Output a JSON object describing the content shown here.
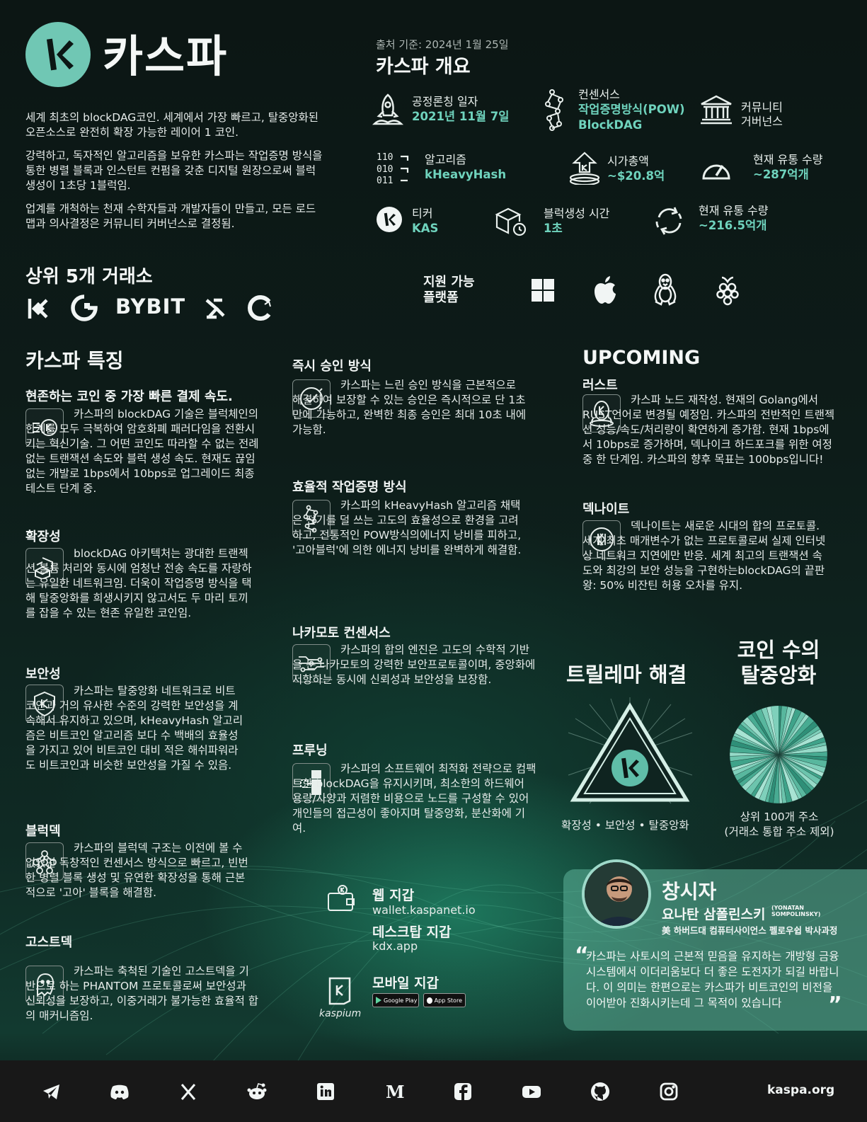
{
  "header": {
    "title": "카스파",
    "intro": [
      "세계 최초의 blockDAG코인. 세계에서 가장 빠르고, 탈중앙화된 오픈소스로 완전히 확장 가능한 레이어 1 코인.",
      "강력하고, 독자적인 알고리즘을 보유한 카스파는 작업증명 방식을 통한 병렬 블록과 인스턴트 컨펌을 갖춘 디지털 원장으로써 블럭생성이 1초당 1블럭임.",
      "업계를 개척하는 천재 수학자들과 개발자들이 만들고, 모든 로드맵과 의사결정은 커뮤니티 커버넌스로 결정됨."
    ]
  },
  "overview": {
    "source": "출처 기준: 2024년 1월 25일",
    "title": "카스파 개요",
    "launch_label": "공정론칭 일자",
    "launch_value": "2021년 11월 7일",
    "consensus_label": "컨센서스",
    "consensus_value": "작업증명방식(POW)",
    "consensus_value2": "BlockDAG",
    "community_label1": "커뮤니티",
    "community_label2": "거버넌스",
    "algo_label": "알고리즘",
    "algo_value": "kHeavyHash",
    "mcap_label": "시가총액",
    "mcap_value": "~$20.8억",
    "supply_label": "현재 유통 수량",
    "supply_value": "~287억개",
    "ticker_label": "티커",
    "ticker_value": "KAS",
    "blocktime_label": "블럭생성 시간",
    "blocktime_value": "1초",
    "circ_label": "현재 유통 수량",
    "circ_value": "~216.5억개"
  },
  "exchanges": {
    "title": "상위 5개 거래소",
    "bybit": "BYBIT"
  },
  "platforms": {
    "label1": "지원 가능",
    "label2": "플랫폼"
  },
  "features": {
    "title": "카스파 특징",
    "speed_title": "현존하는 코인 중 가장 빠른 결제 속도.",
    "speed_text": "카스파의 blockDAG 기술은 블럭체인의 한계를 모두 극복하여 암호화폐 패러다임을 전환시키는 혁신기술. 그 어떤 코인도 따라할 수 없는 전례 없는 트랜잭션 속도와 블럭 생성 속도. 현재도 끊임없는 개발로 1bps에서 10bps로 업그레이드 최종 테스트 단계 중.",
    "scale_title": "확장성",
    "scale_text": "blockDAG 아키텍처는 광대한 트랜젝션 볼륨 처리와 동시에 엄청난 전송 속도를 자랑하는 유일한 네트워크임. 더욱이 작업증명 방식을 택해 탈중앙화를 희생시키지 않고서도 두 마리 토끼를 잡을 수 있는 현존 유일한 코인임.",
    "security_title": "보안성",
    "security_text": "카스파는 탈중앙화 네트워크로 비트코인과 거의 유사한 수준의 강력한 보안성을 계속해서 유지하고 있으며, kHeavyHash 알고리즘은 비트코인 알고리즘 보다 수 백배의 효율성을 가지고 있어 비트코인 대비 적은 해쉬파워라도 비트코인과 비슷한 보안성을 가질 수 있음.",
    "blockdag_title": "블럭덱",
    "blockdag_text": "카스파의 블럭덱 구조는 이전에 볼 수 없었던 독창적인 컨센서스 방식으로 빠르고, 빈번한 병렬 블록 생성 및 유연한 확장성을 통해 근본적으로 '고아' 블록을 해결함.",
    "ghost_title": "고스트덱",
    "ghost_text": "카스파는 축척된 기술인 고스트덱을 기반으로 하는 PHANTOM 프로토콜로써 보안성과 신뢰성을 보장하고, 이중거래가 불가능한 효율적 합의 매커니즘임.",
    "instant_title": "즉시 승인 방식",
    "instant_text": "카스파는 느린 승인 방식을 근본적으로 해결하여 보장할 수 있는 승인은 즉시적으로 단 1초만에 가능하고, 완벽한 최종 승인은 최대 10초 내에 가능함.",
    "pow_title": "효율적 작업증명 방식",
    "pow_text": "카스파의 kHeavyHash 알고리즘 채택은 전기를 덜 쓰는 고도의 효율성으로 환경을 고려하고, 전통적인 POW방식의에너지 낭비를 피하고, '고아블럭'에 의한 에너지 낭비를 완벽하게 해결함.",
    "nakamoto_title": "나카모토 컨센서스",
    "nakamoto_text": "카스파의 합의 엔진은 고도의 수학적 기반을 둔 나카모토의 강력한 보안프로토콜이며, 중앙화에 저항하는 동시에 신뢰성과 보안성을 보장함.",
    "pruning_title": "프루닝",
    "pruning_text": "카스파의 소프트웨어 최적화 전략으로 컴팩트한 blockDAG을 유지시키며, 최소한의 하드웨어 용량/사양과 저렴한 비용으로 노드를 구성할 수 있어 개인들의 접근성이 좋아지며 탈중앙화, 분산화에 기여."
  },
  "upcoming": {
    "title": "UPCOMING",
    "rust_title": "러스트",
    "rust_text": "카스파 노드 재작성. 현재의 Golang에서 RUST언어로 변경될 예정임. 카스파의 전반적인 트랜젝션 성능/속도/처리량이 확연하게 증가함. 현재 1bps에서 10bps로 증가하며, 덱나이크 하드포크를 위한 여정 중 한 단계임. 카스파의 향후 목표는 100bps입니다!",
    "dk_title": "덱나이트",
    "dk_text": "덱나이트는 새로운 시대의 합의 프로토콜. 세계 최초 매개변수가 없는 프로토콜로써 실제 인터넷 상 네트워크 지연에만 반응. 세계 최고의 트랜잭션 속도와 최강의 보안 성능을 구현하는blockDAG의 끝판왕: 50% 비잔틴 허용 오차를 유지."
  },
  "trilemma": {
    "title": "트릴레마 해결",
    "caption": "확장성 • 보안성 • 탈중앙화"
  },
  "decentral": {
    "title1": "코인 수의",
    "title2": "탈중앙화",
    "caption1": "상위 100개 주소",
    "caption2": "(거래소 통합 주소 제외)"
  },
  "wallets": {
    "web_title": "웹 지갑",
    "web_url": "wallet.kaspanet.io",
    "desk_title": "데스크탑 지갑",
    "desk_url": "kdx.app",
    "mobile_title": "모바일 지갑",
    "kaspium": "kaspium",
    "google": "Google Play",
    "apple": "App Store"
  },
  "founder": {
    "title": "창시자",
    "name": "요나탄 삼폴린스키",
    "name_en1": "(YONATAN",
    "name_en2": "SOMPOLINSKY)",
    "role": "美 하버드대 컴퓨터사이언스 펠로우쉽 박사과정",
    "quote": "카스파는 사토시의 근본적 믿음을 유지하는 개방형 금융 시스템에서 이더리움보다 더 좋은 도전자가 되길 바랍니다. 이 의미는 한편으로는 카스파가 비트코인의 비전을 이어받아 진화시키는데 그 목적이 있습니다"
  },
  "footer": {
    "site": "kaspa.org"
  },
  "colors": {
    "accent": "#6fd3bd",
    "background": "#0c1614",
    "footer": "#181818"
  }
}
